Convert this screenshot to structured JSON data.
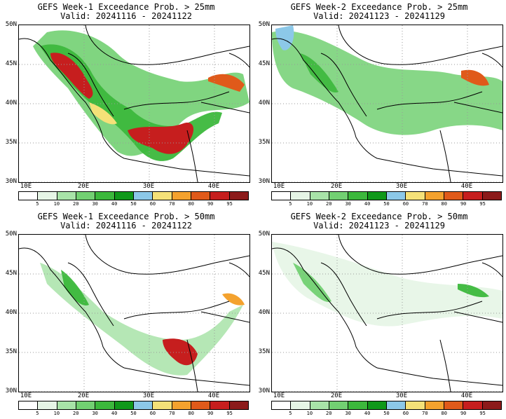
{
  "panels": [
    {
      "title": "GEFS Week-1 Exceedance Prob. > 25mm",
      "valid": "Valid: 20241116 - 20241122"
    },
    {
      "title": "GEFS Week-2 Exceedance Prob. > 25mm",
      "valid": "Valid: 20241123 - 20241129"
    },
    {
      "title": "GEFS Week-1 Exceedance Prob. > 50mm",
      "valid": "Valid: 20241116 - 20241122"
    },
    {
      "title": "GEFS Week-2 Exceedance Prob. > 50mm",
      "valid": "Valid: 20241123 - 20241129"
    }
  ],
  "lat_labels": [
    "50N",
    "45N",
    "40N",
    "35N",
    "30N"
  ],
  "lon_labels": [
    "10E",
    "20E",
    "30E",
    "40E"
  ],
  "colorbar": {
    "labels": [
      "5",
      "10",
      "20",
      "30",
      "40",
      "50",
      "60",
      "70",
      "80",
      "90",
      "95"
    ],
    "colors": [
      "#ffffff",
      "#e6f5e6",
      "#a8e3a8",
      "#72d072",
      "#3cb83c",
      "#10981a",
      "#8cc8e8",
      "#f5e178",
      "#f4a22e",
      "#e05a1a",
      "#c61e1e",
      "#8c1a1a"
    ]
  }
}
